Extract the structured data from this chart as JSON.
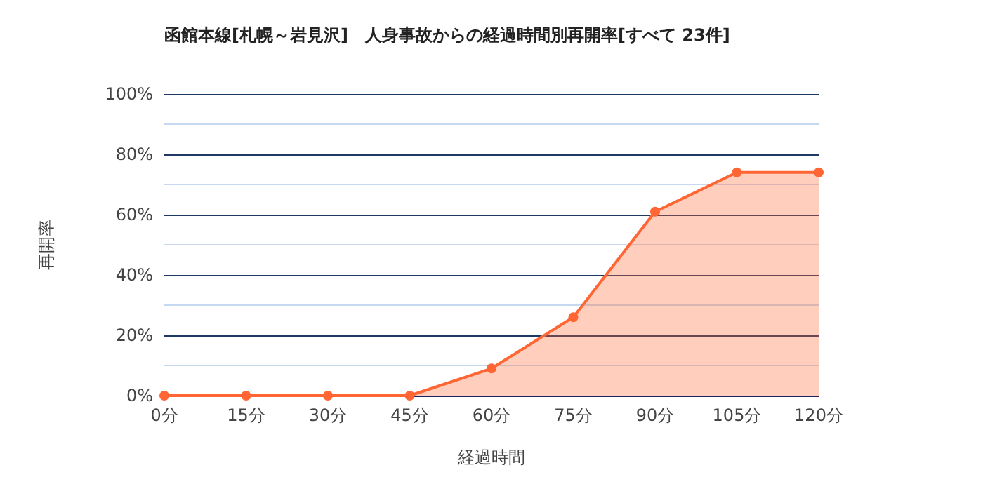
{
  "chart_data": {
    "type": "area",
    "title": "函館本線[札幌～岩見沢]　人身事故からの経過時間別再開率[すべて 23件]",
    "xlabel": "経過時間",
    "ylabel": "再開率",
    "categories": [
      "0分",
      "15分",
      "30分",
      "45分",
      "60分",
      "75分",
      "90分",
      "105分",
      "120分"
    ],
    "series": [
      {
        "color": "#ff6633",
        "values": [
          0,
          0,
          0,
          0,
          9,
          26,
          61,
          74,
          74
        ]
      }
    ],
    "ylim": [
      0,
      100
    ],
    "yticks": [
      {
        "value": 0,
        "label": "0%"
      },
      {
        "value": 10,
        "label": null
      },
      {
        "value": 20,
        "label": "20%"
      },
      {
        "value": 30,
        "label": null
      },
      {
        "value": 40,
        "label": "40%"
      },
      {
        "value": 50,
        "label": null
      },
      {
        "value": 60,
        "label": "60%"
      },
      {
        "value": 70,
        "label": null
      },
      {
        "value": 80,
        "label": "80%"
      },
      {
        "value": 90,
        "label": null
      },
      {
        "value": 100,
        "label": "100%"
      }
    ],
    "grid": true,
    "marker": "circle"
  }
}
